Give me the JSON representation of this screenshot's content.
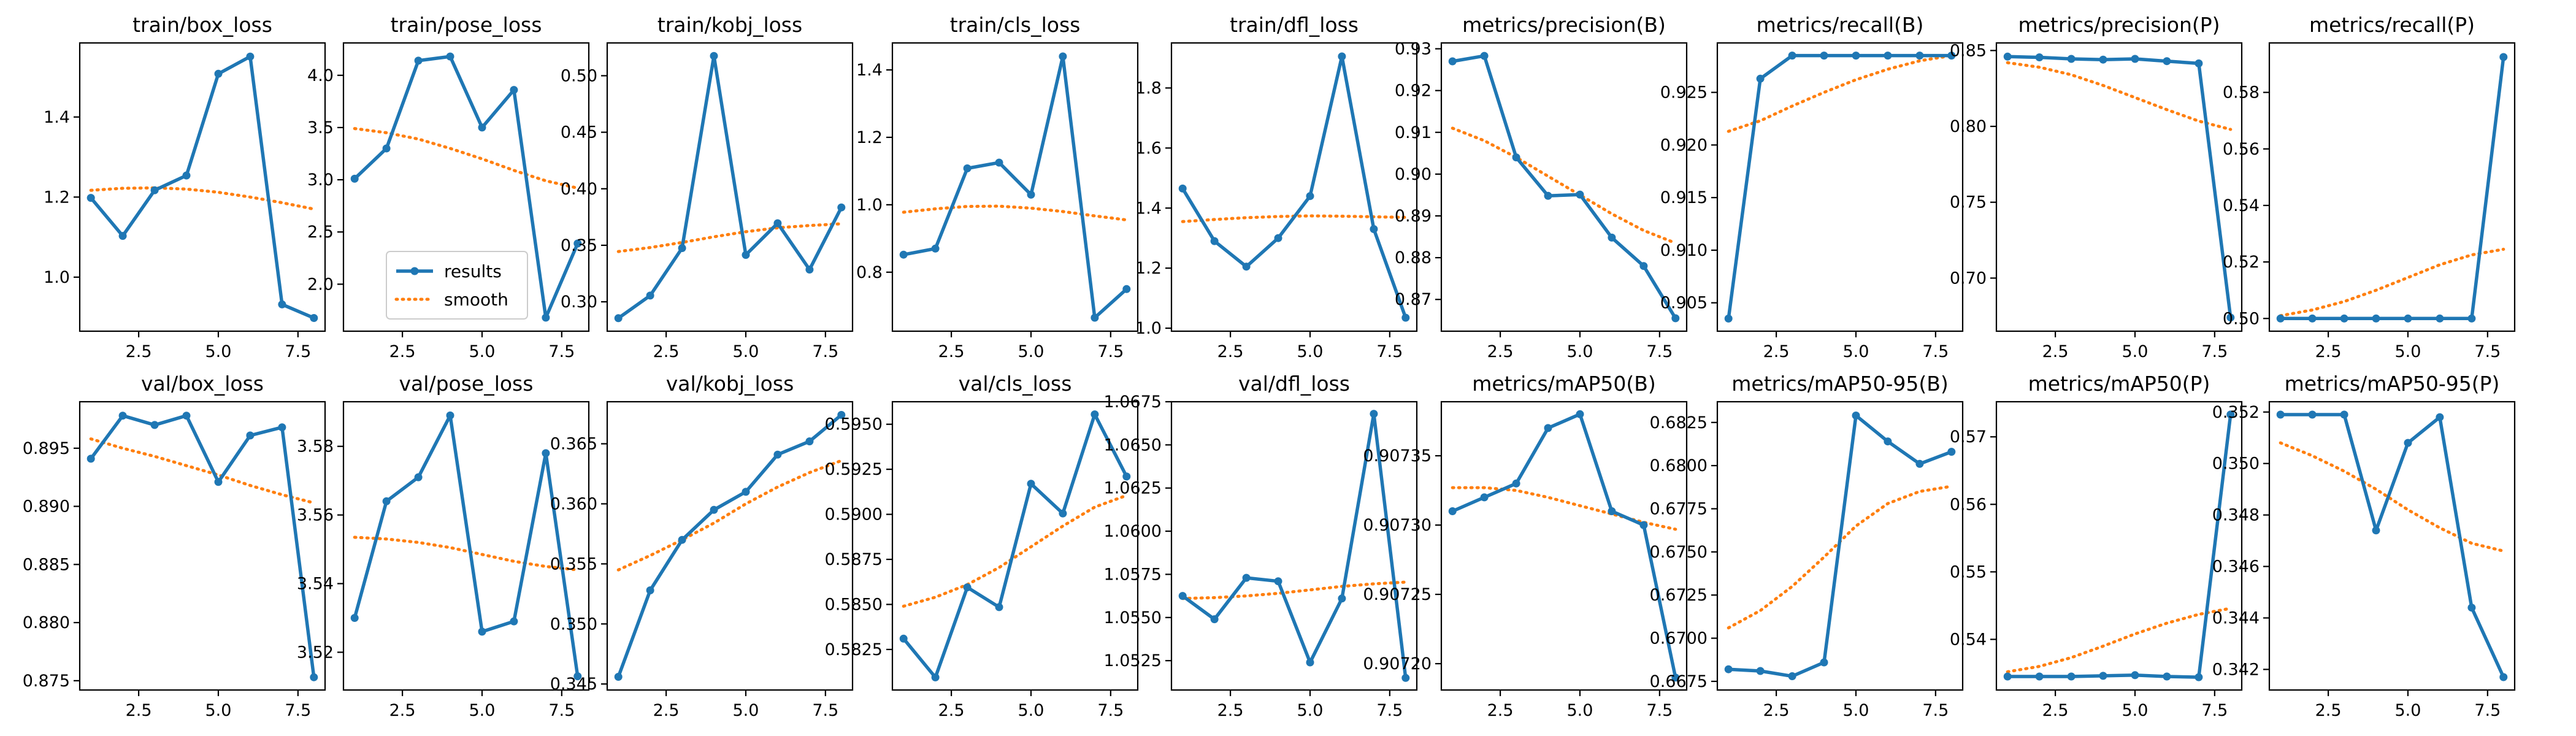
{
  "colors": {
    "results": "#1f77b4",
    "smooth": "#ff7f0e"
  },
  "legend": {
    "results_label": "results",
    "smooth_label": "smooth"
  },
  "chart_data": [
    {
      "type": "line",
      "title": "train/box_loss",
      "x": [
        1,
        2,
        3,
        4,
        5,
        6,
        7,
        8
      ],
      "series": [
        {
          "name": "results",
          "values": [
            1.198,
            1.103,
            1.217,
            1.254,
            1.508,
            1.551,
            0.932,
            0.898
          ]
        },
        {
          "name": "smooth",
          "values": [
            1.217,
            1.222,
            1.223,
            1.22,
            1.212,
            1.2,
            1.186,
            1.17
          ]
        }
      ],
      "xticks": [
        2.5,
        5.0,
        7.5
      ],
      "xlim": [
        0.65,
        8.35
      ],
      "yticks": [
        1.0,
        1.2,
        1.4
      ],
      "ytick_labels": [
        "1.0",
        "1.2",
        "1.4"
      ],
      "ylim": [
        0.865,
        1.585
      ]
    },
    {
      "type": "line",
      "title": "train/pose_loss",
      "x": [
        1,
        2,
        3,
        4,
        5,
        6,
        7,
        8
      ],
      "series": [
        {
          "name": "results",
          "values": [
            3.01,
            3.3,
            4.14,
            4.18,
            3.5,
            3.86,
            1.68,
            2.39
          ]
        },
        {
          "name": "smooth",
          "values": [
            3.49,
            3.45,
            3.39,
            3.3,
            3.2,
            3.09,
            2.99,
            2.92
          ]
        }
      ],
      "xticks": [
        2.5,
        5.0,
        7.5
      ],
      "xlim": [
        0.65,
        8.35
      ],
      "yticks": [
        2.0,
        2.5,
        3.0,
        3.5,
        4.0
      ],
      "ytick_labels": [
        "2.0",
        "2.5",
        "3.0",
        "3.5",
        "4.0"
      ],
      "ylim": [
        1.55,
        4.31
      ],
      "legend": true
    },
    {
      "type": "line",
      "title": "train/kobj_loss",
      "x": [
        1,
        2,
        3,
        4,
        5,
        6,
        7,
        8
      ],
      "series": [
        {
          "name": "results",
          "values": [
            0.2855,
            0.3055,
            0.3475,
            0.5175,
            0.3415,
            0.3695,
            0.3285,
            0.3835
          ]
        },
        {
          "name": "smooth",
          "values": [
            0.3445,
            0.348,
            0.3525,
            0.3575,
            0.362,
            0.3655,
            0.3675,
            0.369
          ]
        }
      ],
      "xticks": [
        2.5,
        5.0,
        7.5
      ],
      "xlim": [
        0.65,
        8.35
      ],
      "yticks": [
        0.3,
        0.35,
        0.4,
        0.45,
        0.5
      ],
      "ytick_labels": [
        "0.30",
        "0.35",
        "0.40",
        "0.45",
        "0.50"
      ],
      "ylim": [
        0.274,
        0.529
      ]
    },
    {
      "type": "line",
      "title": "train/cls_loss",
      "x": [
        1,
        2,
        3,
        4,
        5,
        6,
        7,
        8
      ],
      "series": [
        {
          "name": "results",
          "values": [
            0.852,
            0.87,
            1.108,
            1.125,
            1.03,
            1.44,
            0.665,
            0.75
          ]
        },
        {
          "name": "smooth",
          "values": [
            0.978,
            0.988,
            0.995,
            0.996,
            0.99,
            0.98,
            0.967,
            0.955
          ]
        }
      ],
      "xticks": [
        2.5,
        5.0,
        7.5
      ],
      "xlim": [
        0.65,
        8.35
      ],
      "yticks": [
        0.8,
        1.0,
        1.2,
        1.4
      ],
      "ytick_labels": [
        "0.8",
        "1.0",
        "1.2",
        "1.4"
      ],
      "ylim": [
        0.625,
        1.48
      ]
    },
    {
      "type": "line",
      "title": "train/dfl_loss",
      "x": [
        1,
        2,
        3,
        4,
        5,
        6,
        7,
        8
      ],
      "series": [
        {
          "name": "results",
          "values": [
            1.465,
            1.29,
            1.205,
            1.3,
            1.44,
            1.905,
            1.33,
            1.035
          ]
        },
        {
          "name": "smooth",
          "values": [
            1.355,
            1.362,
            1.368,
            1.372,
            1.374,
            1.373,
            1.371,
            1.369
          ]
        }
      ],
      "xticks": [
        2.5,
        5.0,
        7.5
      ],
      "xlim": [
        0.65,
        8.35
      ],
      "yticks": [
        1.0,
        1.2,
        1.4,
        1.6,
        1.8
      ],
      "ytick_labels": [
        "1.0",
        "1.2",
        "1.4",
        "1.6",
        "1.8"
      ],
      "ylim": [
        0.99,
        1.95
      ]
    },
    {
      "type": "line",
      "title": "metrics/precision(B)",
      "x": [
        1,
        2,
        3,
        4,
        5,
        6,
        7,
        8
      ],
      "series": [
        {
          "name": "results",
          "values": [
            0.927,
            0.9283,
            0.904,
            0.8948,
            0.8951,
            0.8848,
            0.878,
            0.8655
          ]
        },
        {
          "name": "smooth",
          "values": [
            0.911,
            0.908,
            0.904,
            0.8995,
            0.895,
            0.8905,
            0.8865,
            0.8835
          ]
        }
      ],
      "xticks": [
        2.5,
        5.0,
        7.5
      ],
      "xlim": [
        0.65,
        8.35
      ],
      "yticks": [
        0.87,
        0.88,
        0.89,
        0.9,
        0.91,
        0.92,
        0.93
      ],
      "ytick_labels": [
        "0.87",
        "0.88",
        "0.89",
        "0.90",
        "0.91",
        "0.92",
        "0.93"
      ],
      "ylim": [
        0.8624,
        0.9314
      ]
    },
    {
      "type": "line",
      "title": "metrics/recall(B)",
      "x": [
        1,
        2,
        3,
        4,
        5,
        6,
        7,
        8
      ],
      "series": [
        {
          "name": "results",
          "values": [
            0.9035,
            0.9263,
            0.9285,
            0.9285,
            0.9285,
            0.9285,
            0.9285,
            0.9285
          ]
        },
        {
          "name": "smooth",
          "values": [
            0.9213,
            0.9223,
            0.9237,
            0.925,
            0.9262,
            0.9272,
            0.928,
            0.9285
          ]
        }
      ],
      "xticks": [
        2.5,
        5.0,
        7.5
      ],
      "xlim": [
        0.65,
        8.35
      ],
      "yticks": [
        0.905,
        0.91,
        0.915,
        0.92,
        0.925
      ],
      "ytick_labels": [
        "0.905",
        "0.910",
        "0.915",
        "0.920",
        "0.925"
      ],
      "ylim": [
        0.9023,
        0.9297
      ]
    },
    {
      "type": "line",
      "title": "metrics/precision(P)",
      "x": [
        1,
        2,
        3,
        4,
        5,
        6,
        7,
        8
      ],
      "series": [
        {
          "name": "results",
          "values": [
            0.846,
            0.8455,
            0.8445,
            0.844,
            0.8445,
            0.843,
            0.8415,
            0.674
          ]
        },
        {
          "name": "smooth",
          "values": [
            0.842,
            0.839,
            0.834,
            0.827,
            0.819,
            0.811,
            0.8035,
            0.798
          ]
        }
      ],
      "xticks": [
        2.5,
        5.0,
        7.5
      ],
      "xlim": [
        0.65,
        8.35
      ],
      "yticks": [
        0.7,
        0.75,
        0.8,
        0.85
      ],
      "ytick_labels": [
        "0.70",
        "0.75",
        "0.80",
        "0.85"
      ],
      "ylim": [
        0.665,
        0.855
      ]
    },
    {
      "type": "line",
      "title": "metrics/recall(P)",
      "x": [
        1,
        2,
        3,
        4,
        5,
        6,
        7,
        8
      ],
      "series": [
        {
          "name": "results",
          "values": [
            0.5,
            0.5,
            0.5,
            0.5,
            0.5,
            0.5,
            0.5,
            0.5925
          ]
        },
        {
          "name": "smooth",
          "values": [
            0.501,
            0.503,
            0.506,
            0.51,
            0.5145,
            0.519,
            0.5225,
            0.5245
          ]
        }
      ],
      "xticks": [
        2.5,
        5.0,
        7.5
      ],
      "xlim": [
        0.65,
        8.35
      ],
      "yticks": [
        0.5,
        0.52,
        0.54,
        0.56,
        0.58
      ],
      "ytick_labels": [
        "0.50",
        "0.52",
        "0.54",
        "0.56",
        "0.58"
      ],
      "ylim": [
        0.4955,
        0.5975
      ]
    },
    {
      "type": "line",
      "title": "val/box_loss",
      "x": [
        1,
        2,
        3,
        4,
        5,
        6,
        7,
        8
      ],
      "series": [
        {
          "name": "results",
          "values": [
            0.8941,
            0.8978,
            0.897,
            0.8978,
            0.8921,
            0.8961,
            0.8968,
            0.8753
          ]
        },
        {
          "name": "smooth",
          "values": [
            0.8958,
            0.895,
            0.8943,
            0.8935,
            0.8927,
            0.8918,
            0.891,
            0.8903
          ]
        }
      ],
      "xticks": [
        2.5,
        5.0,
        7.5
      ],
      "xlim": [
        0.65,
        8.35
      ],
      "yticks": [
        0.875,
        0.88,
        0.885,
        0.89,
        0.895
      ],
      "ytick_labels": [
        "0.875",
        "0.880",
        "0.885",
        "0.890",
        "0.895"
      ],
      "ylim": [
        0.8742,
        0.899
      ]
    },
    {
      "type": "line",
      "title": "val/pose_loss",
      "x": [
        1,
        2,
        3,
        4,
        5,
        6,
        7,
        8
      ],
      "series": [
        {
          "name": "results",
          "values": [
            3.53,
            3.564,
            3.571,
            3.589,
            3.526,
            3.529,
            3.578,
            3.513
          ]
        },
        {
          "name": "smooth",
          "values": [
            3.5535,
            3.553,
            3.552,
            3.5505,
            3.5485,
            3.5465,
            3.545,
            3.544
          ]
        }
      ],
      "xticks": [
        2.5,
        5.0,
        7.5
      ],
      "xlim": [
        0.65,
        8.35
      ],
      "yticks": [
        3.52,
        3.54,
        3.56,
        3.58
      ],
      "ytick_labels": [
        "3.52",
        "3.54",
        "3.56",
        "3.58"
      ],
      "ylim": [
        3.509,
        3.593
      ]
    },
    {
      "type": "line",
      "title": "val/kobj_loss",
      "x": [
        1,
        2,
        3,
        4,
        5,
        6,
        7,
        8
      ],
      "series": [
        {
          "name": "results",
          "values": [
            0.3456,
            0.3528,
            0.357,
            0.3595,
            0.361,
            0.3641,
            0.3652,
            0.3674
          ]
        },
        {
          "name": "smooth",
          "values": [
            0.3545,
            0.3557,
            0.357,
            0.3584,
            0.36,
            0.3614,
            0.3626,
            0.3636
          ]
        }
      ],
      "xticks": [
        2.5,
        5.0,
        7.5
      ],
      "xlim": [
        0.65,
        8.35
      ],
      "yticks": [
        0.345,
        0.35,
        0.355,
        0.36,
        0.365
      ],
      "ytick_labels": [
        "0.345",
        "0.350",
        "0.355",
        "0.360",
        "0.365"
      ],
      "ylim": [
        0.3445,
        0.3685
      ]
    },
    {
      "type": "line",
      "title": "val/cls_loss",
      "x": [
        1,
        2,
        3,
        4,
        5,
        6,
        7,
        8
      ],
      "series": [
        {
          "name": "results",
          "values": [
            0.5831,
            0.58095,
            0.58595,
            0.58485,
            0.5917,
            0.59005,
            0.59555,
            0.5921
          ]
        },
        {
          "name": "smooth",
          "values": [
            0.5849,
            0.5854,
            0.5861,
            0.58705,
            0.5882,
            0.58935,
            0.5904,
            0.59105
          ]
        }
      ],
      "xticks": [
        2.5,
        5.0,
        7.5
      ],
      "xlim": [
        0.65,
        8.35
      ],
      "yticks": [
        0.5825,
        0.585,
        0.5875,
        0.59,
        0.5925,
        0.595
      ],
      "ytick_labels": [
        "0.5825",
        "0.5850",
        "0.5875",
        "0.5900",
        "0.5925",
        "0.5950"
      ],
      "ylim": [
        0.58025,
        0.59625
      ]
    },
    {
      "type": "line",
      "title": "val/dfl_loss",
      "x": [
        1,
        2,
        3,
        4,
        5,
        6,
        7,
        8
      ],
      "series": [
        {
          "name": "results",
          "values": [
            1.05625,
            1.0549,
            1.0573,
            1.0571,
            1.0524,
            1.0561,
            1.0668,
            1.0515
          ]
        },
        {
          "name": "smooth",
          "values": [
            1.0561,
            1.05615,
            1.05625,
            1.0564,
            1.0566,
            1.0568,
            1.05695,
            1.05705
          ]
        }
      ],
      "xticks": [
        2.5,
        5.0,
        7.5
      ],
      "xlim": [
        0.65,
        8.35
      ],
      "yticks": [
        1.0525,
        1.055,
        1.0575,
        1.06,
        1.0625,
        1.065,
        1.0675
      ],
      "ytick_labels": [
        "1.0525",
        "1.0550",
        "1.0575",
        "1.0600",
        "1.0625",
        "1.0650",
        "1.0675"
      ],
      "ylim": [
        1.0508,
        1.0675
      ]
    },
    {
      "type": "line",
      "title": "metrics/mAP50(B)",
      "x": [
        1,
        2,
        3,
        4,
        5,
        6,
        7,
        8
      ],
      "series": [
        {
          "name": "results",
          "values": [
            0.90731,
            0.90732,
            0.90733,
            0.90737,
            0.90738,
            0.90731,
            0.9073,
            0.90719
          ]
        },
        {
          "name": "smooth",
          "values": [
            0.907327,
            0.907327,
            0.907325,
            0.90732,
            0.907314,
            0.907308,
            0.907302,
            0.907297
          ]
        }
      ],
      "xticks": [
        2.5,
        5.0,
        7.5
      ],
      "xlim": [
        0.65,
        8.35
      ],
      "yticks": [
        0.9072,
        0.90725,
        0.9073,
        0.90735
      ],
      "ytick_labels": [
        "0.90720",
        "0.90725",
        "0.90730",
        "0.90735"
      ],
      "ylim": [
        0.907181,
        0.907389
      ]
    },
    {
      "type": "line",
      "title": "metrics/mAP50-95(B)",
      "x": [
        1,
        2,
        3,
        4,
        5,
        6,
        7,
        8
      ],
      "series": [
        {
          "name": "results",
          "values": [
            0.6682,
            0.6681,
            0.6678,
            0.6686,
            0.6829,
            0.6814,
            0.6801,
            0.6808
          ]
        },
        {
          "name": "smooth",
          "values": [
            0.6706,
            0.6716,
            0.673,
            0.6747,
            0.6765,
            0.6778,
            0.6785,
            0.6788
          ]
        }
      ],
      "xticks": [
        2.5,
        5.0,
        7.5
      ],
      "xlim": [
        0.65,
        8.35
      ],
      "yticks": [
        0.6675,
        0.67,
        0.6725,
        0.675,
        0.6775,
        0.68,
        0.6825
      ],
      "ytick_labels": [
        "0.6675",
        "0.6700",
        "0.6725",
        "0.6750",
        "0.6775",
        "0.6800",
        "0.6825"
      ],
      "ylim": [
        0.667,
        0.6837
      ]
    },
    {
      "type": "line",
      "title": "metrics/mAP50(P)",
      "x": [
        1,
        2,
        3,
        4,
        5,
        6,
        7,
        8
      ],
      "series": [
        {
          "name": "results",
          "values": [
            0.5345,
            0.5345,
            0.5345,
            0.5346,
            0.5347,
            0.5345,
            0.5344,
            0.5733
          ]
        },
        {
          "name": "smooth",
          "values": [
            0.5352,
            0.536,
            0.5373,
            0.539,
            0.5408,
            0.5424,
            0.5437,
            0.5446
          ]
        }
      ],
      "xticks": [
        2.5,
        5.0,
        7.5
      ],
      "xlim": [
        0.65,
        8.35
      ],
      "yticks": [
        0.54,
        0.55,
        0.56,
        0.57
      ],
      "ytick_labels": [
        "0.54",
        "0.55",
        "0.56",
        "0.57"
      ],
      "ylim": [
        0.5325,
        0.5752
      ]
    },
    {
      "type": "line",
      "title": "metrics/mAP50-95(P)",
      "x": [
        1,
        2,
        3,
        4,
        5,
        6,
        7,
        8
      ],
      "series": [
        {
          "name": "results",
          "values": [
            0.3519,
            0.3519,
            0.3519,
            0.3474,
            0.3508,
            0.3518,
            0.3444,
            0.3417
          ]
        },
        {
          "name": "smooth",
          "values": [
            0.3508,
            0.3503,
            0.3497,
            0.349,
            0.3482,
            0.3475,
            0.3469,
            0.3466
          ]
        }
      ],
      "xticks": [
        2.5,
        5.0,
        7.5
      ],
      "xlim": [
        0.65,
        8.35
      ],
      "yticks": [
        0.342,
        0.344,
        0.346,
        0.348,
        0.35,
        0.352
      ],
      "ytick_labels": [
        "0.342",
        "0.344",
        "0.346",
        "0.348",
        "0.350",
        "0.352"
      ],
      "ylim": [
        0.3412,
        0.3524
      ]
    }
  ]
}
